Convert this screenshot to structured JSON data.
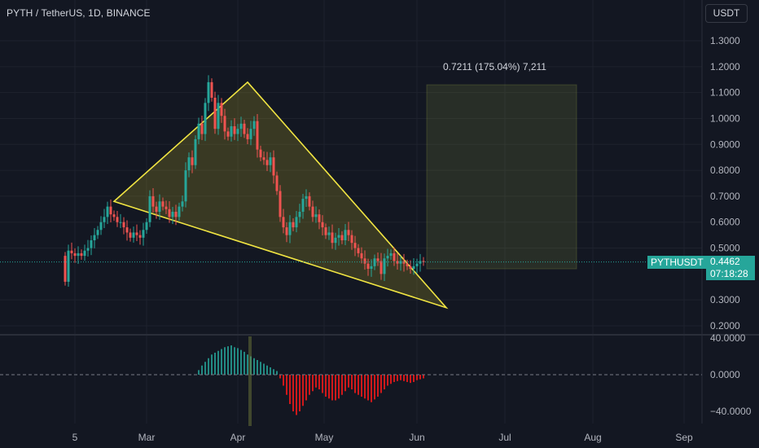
{
  "header": {
    "title": "PYTH / TetherUS, 1D, BINANCE",
    "currency_button": "USDT"
  },
  "range_label": "0.7211 (175.04%) 7,211",
  "last_price": {
    "symbol": "PYTHUSDT",
    "price": "0.4462",
    "countdown": "07:18:28"
  },
  "colors": {
    "background": "#131722",
    "up": "#26a69a",
    "down": "#ef5350",
    "triangle": "#f0e442",
    "osc_up": "#26a69a",
    "osc_down": "#ff1a1a"
  },
  "chart_data": [
    {
      "type": "candlestick",
      "title": "PYTH / TetherUS, 1D, BINANCE",
      "x_ticks": [
        "5",
        "Mar",
        "Apr",
        "May",
        "Jun",
        "Jul",
        "Aug",
        "Sep"
      ],
      "y_ticks": [
        "1.3000",
        "1.2000",
        "1.1000",
        "1.0000",
        "0.9000",
        "0.8000",
        "0.7000",
        "0.6000",
        "0.5000",
        "0.3000",
        "0.2000"
      ],
      "ylim": [
        0.15,
        1.4
      ],
      "last_price": 0.4462,
      "closes": [
        0.37,
        0.49,
        0.48,
        0.47,
        0.48,
        0.47,
        0.49,
        0.5,
        0.53,
        0.55,
        0.57,
        0.6,
        0.62,
        0.66,
        0.63,
        0.62,
        0.6,
        0.6,
        0.58,
        0.56,
        0.54,
        0.56,
        0.55,
        0.54,
        0.57,
        0.6,
        0.7,
        0.66,
        0.64,
        0.68,
        0.66,
        0.65,
        0.62,
        0.64,
        0.62,
        0.66,
        0.68,
        0.8,
        0.85,
        0.82,
        0.92,
        0.98,
        0.94,
        1.06,
        1.14,
        1.08,
        0.96,
        1.06,
        1.01,
        0.95,
        0.93,
        0.97,
        0.94,
        0.96,
        0.98,
        0.94,
        0.92,
        0.96,
        0.99,
        0.88,
        0.85,
        0.84,
        0.82,
        0.85,
        0.78,
        0.72,
        0.62,
        0.58,
        0.55,
        0.6,
        0.58,
        0.62,
        0.64,
        0.69,
        0.7,
        0.66,
        0.62,
        0.63,
        0.6,
        0.58,
        0.55,
        0.56,
        0.52,
        0.54,
        0.55,
        0.53,
        0.57,
        0.55,
        0.52,
        0.5,
        0.48,
        0.46,
        0.44,
        0.42,
        0.43,
        0.46,
        0.45,
        0.4,
        0.46,
        0.47,
        0.48,
        0.45,
        0.44,
        0.45,
        0.44,
        0.43,
        0.42,
        0.43,
        0.44,
        0.45,
        0.4462
      ],
      "triangle_vertices": [
        [
          15,
          0.68
        ],
        [
          56,
          1.14
        ],
        [
          117,
          0.27
        ]
      ],
      "lower_line": [
        [
          15,
          0.68
        ],
        [
          117,
          0.27
        ]
      ],
      "target_box": {
        "x_start": 111,
        "x_end": 157,
        "y_low": 0.42,
        "y_high": 1.13
      }
    },
    {
      "type": "bar",
      "series_name": "oscillator",
      "y_ticks": [
        "40.0000",
        "0.0000",
        "−40.0000"
      ],
      "ylim": [
        -55,
        45
      ],
      "values": [
        0,
        0,
        0,
        0,
        0,
        0,
        0,
        0,
        0,
        0,
        0,
        0,
        0,
        0,
        0,
        0,
        0,
        0,
        0,
        0,
        0,
        0,
        0,
        0,
        0,
        0,
        0,
        0,
        0,
        0,
        0,
        0,
        0,
        0,
        0,
        0,
        0,
        0,
        0,
        0,
        0,
        5,
        10,
        14,
        18,
        22,
        24,
        26,
        28,
        30,
        31,
        32,
        30,
        29,
        27,
        25,
        22,
        20,
        18,
        16,
        14,
        12,
        10,
        8,
        6,
        4,
        -4,
        -12,
        -22,
        -32,
        -40,
        -44,
        -40,
        -34,
        -28,
        -22,
        -18,
        -14,
        -16,
        -20,
        -24,
        -26,
        -28,
        -28,
        -26,
        -22,
        -18,
        -14,
        -16,
        -20,
        -22,
        -24,
        -26,
        -28,
        -30,
        -27,
        -24,
        -20,
        -16,
        -12,
        -10,
        -8,
        -7,
        -6,
        -7,
        -8,
        -9,
        -8,
        -6,
        -5,
        -4
      ]
    }
  ]
}
